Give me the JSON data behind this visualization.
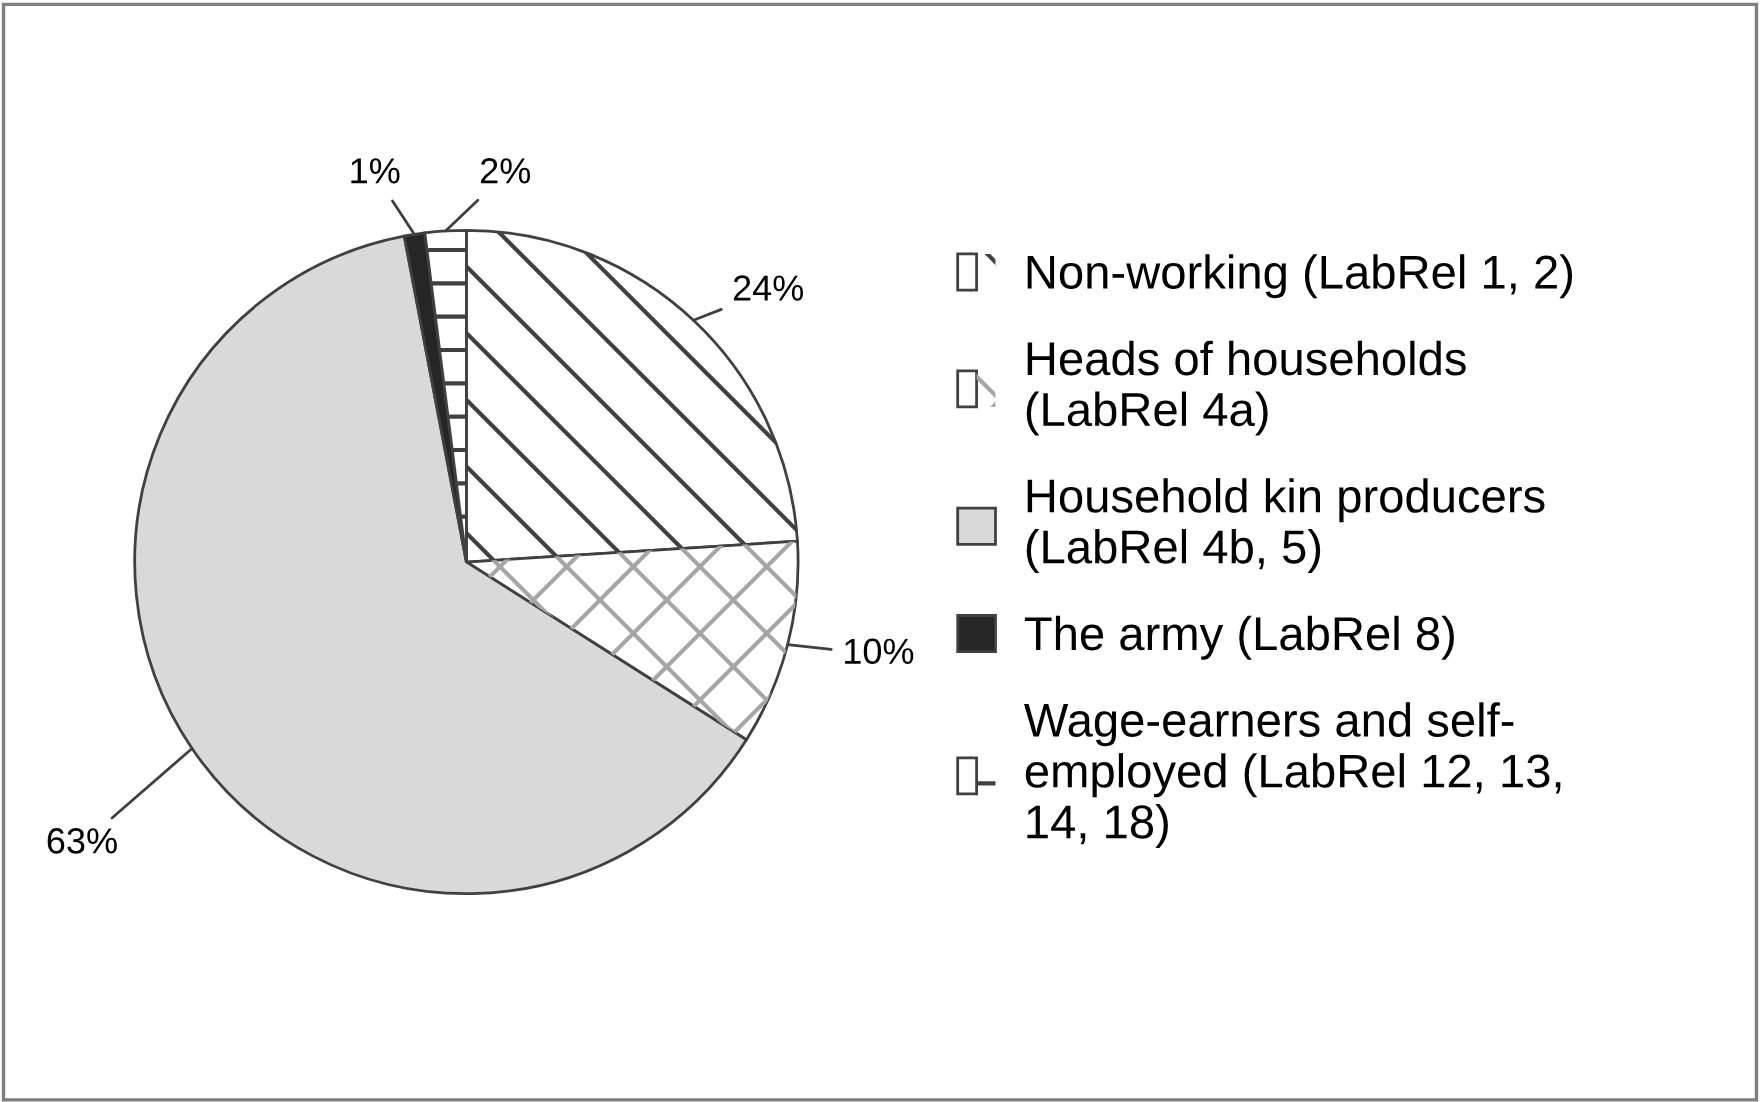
{
  "chart_data": {
    "type": "pie",
    "categories": [
      "Non-working (LabRel 1, 2)",
      "Heads of households\n(LabRel 4a)",
      "Household kin producers\n(LabRel 4b, 5)",
      "The army (LabRel 8)",
      "Wage-earners and self-\nemployed (LabRel 12, 13,\n14, 18)"
    ],
    "values": [
      24,
      10,
      63,
      1,
      2
    ],
    "colors": [
      "#ffffff",
      "#ffffff",
      "#d9d9d9",
      "#262626",
      "#ffffff"
    ],
    "value_labels": [
      "24%",
      "10%",
      "63%",
      "1%",
      "2%"
    ],
    "legend": "right"
  }
}
